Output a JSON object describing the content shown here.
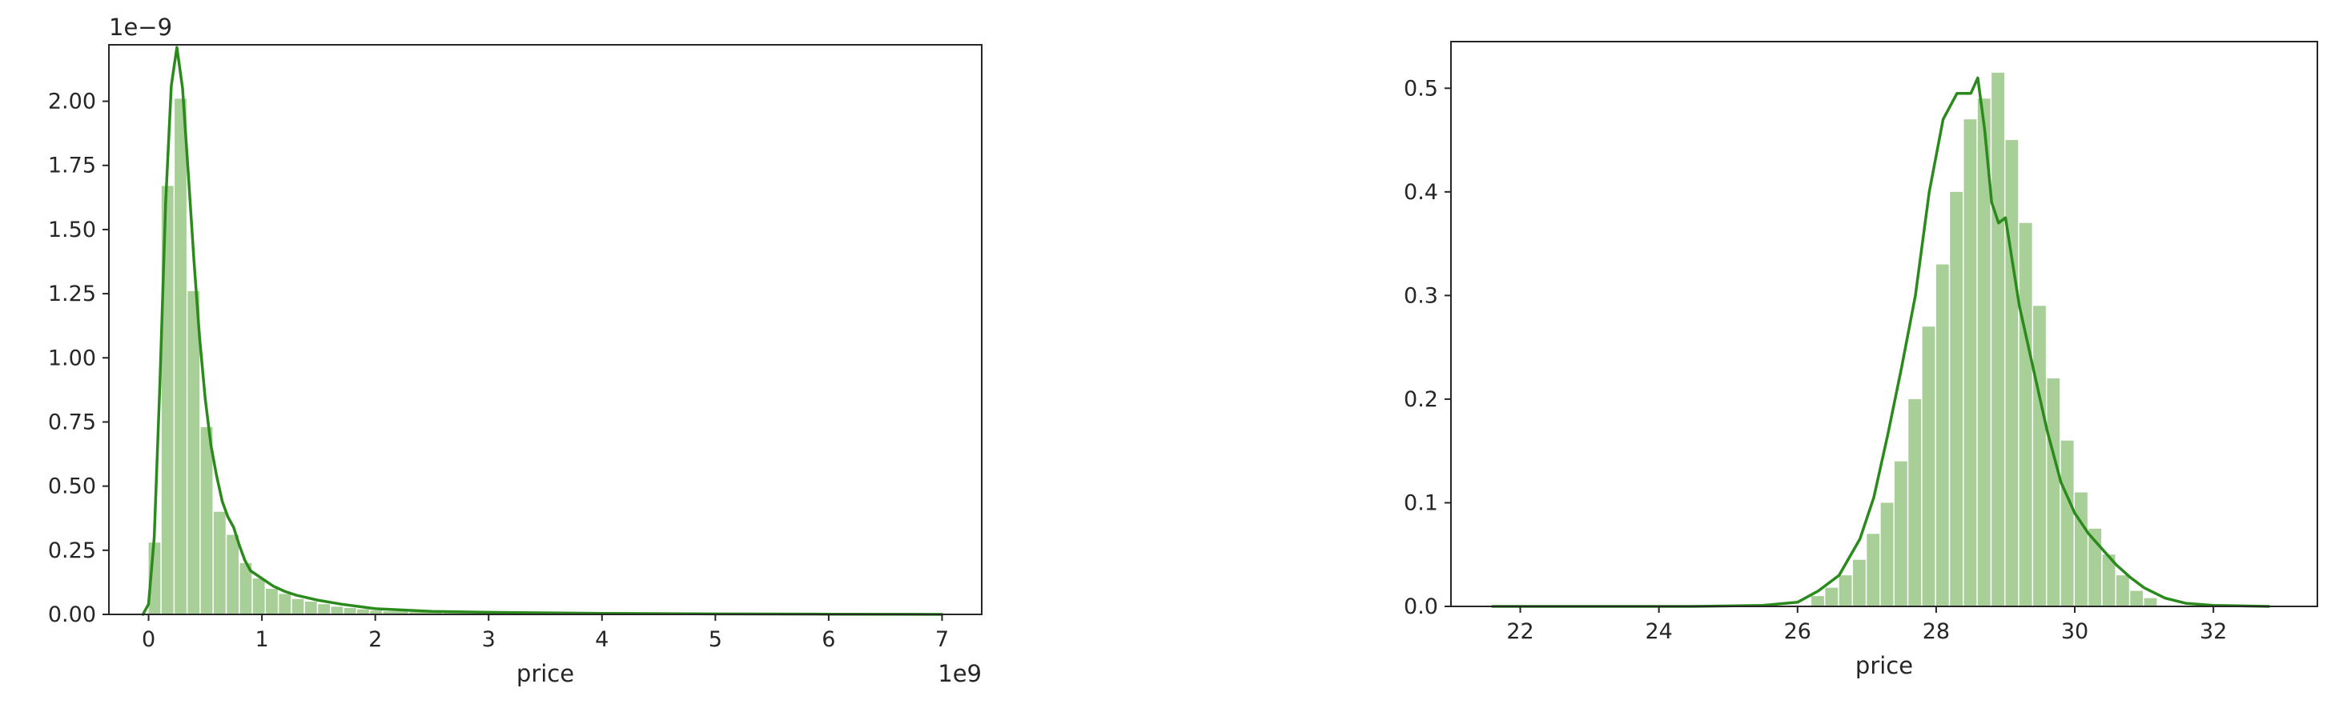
{
  "chart_data": [
    {
      "type": "bar",
      "subtype": "histogram-with-kde",
      "xlabel": "price",
      "ylabel": "",
      "x_offset_text": "1e9",
      "y_offset_text": "1e−9",
      "xlim": [
        -0.35,
        7.35
      ],
      "ylim": [
        0,
        2.22
      ],
      "xticks": [
        0,
        1,
        2,
        3,
        4,
        5,
        6,
        7
      ],
      "xtick_labels": [
        "0",
        "1",
        "2",
        "3",
        "4",
        "5",
        "6",
        "7"
      ],
      "yticks": [
        0,
        0.25,
        0.5,
        0.75,
        1.0,
        1.25,
        1.5,
        1.75,
        2.0
      ],
      "ytick_labels": [
        "0.00",
        "0.25",
        "0.50",
        "0.75",
        "1.00",
        "1.25",
        "1.50",
        "1.75",
        "2.00"
      ],
      "grid": false,
      "bar_color": "#a9cf98",
      "line_color": "#2a8a1c",
      "bin_edges": [
        0.0,
        0.115,
        0.23,
        0.345,
        0.46,
        0.575,
        0.69,
        0.805,
        0.92,
        1.035,
        1.15,
        1.265,
        1.38,
        1.495,
        1.61,
        1.725,
        1.84,
        1.955,
        2.07,
        2.3,
        2.6,
        3.0,
        3.5,
        4.0,
        5.0,
        6.0,
        7.0
      ],
      "values": [
        0.28,
        1.67,
        2.01,
        1.26,
        0.73,
        0.4,
        0.31,
        0.2,
        0.14,
        0.1,
        0.08,
        0.06,
        0.05,
        0.04,
        0.03,
        0.025,
        0.02,
        0.015,
        0.012,
        0.009,
        0.007,
        0.005,
        0.004,
        0.003,
        0.002,
        0.001
      ],
      "kde_x": [
        -0.05,
        0.0,
        0.05,
        0.1,
        0.15,
        0.2,
        0.25,
        0.3,
        0.35,
        0.4,
        0.45,
        0.5,
        0.55,
        0.6,
        0.65,
        0.7,
        0.75,
        0.8,
        0.85,
        0.9,
        1.0,
        1.1,
        1.2,
        1.3,
        1.5,
        1.7,
        2.0,
        2.5,
        3.0,
        4.0,
        5.0,
        6.0,
        7.0
      ],
      "kde_y": [
        0.0,
        0.04,
        0.3,
        0.9,
        1.6,
        2.06,
        2.21,
        2.05,
        1.72,
        1.38,
        1.08,
        0.84,
        0.66,
        0.54,
        0.44,
        0.38,
        0.34,
        0.27,
        0.21,
        0.17,
        0.14,
        0.11,
        0.09,
        0.075,
        0.055,
        0.04,
        0.022,
        0.012,
        0.008,
        0.004,
        0.002,
        0.001,
        0.0
      ]
    },
    {
      "type": "bar",
      "subtype": "histogram-with-kde",
      "xlabel": "price",
      "ylabel": "",
      "xlim": [
        21.0,
        33.5
      ],
      "ylim": [
        0,
        0.545
      ],
      "xticks": [
        22,
        24,
        26,
        28,
        30,
        32
      ],
      "xtick_labels": [
        "22",
        "24",
        "26",
        "28",
        "30",
        "32"
      ],
      "yticks": [
        0.0,
        0.1,
        0.2,
        0.3,
        0.4,
        0.5
      ],
      "ytick_labels": [
        "0.0",
        "0.1",
        "0.2",
        "0.3",
        "0.4",
        "0.5"
      ],
      "grid": false,
      "bar_color": "#a9cf98",
      "line_color": "#2a8a1c",
      "bin_start": 26.2,
      "bin_width": 0.2,
      "values": [
        0.01,
        0.018,
        0.03,
        0.045,
        0.07,
        0.1,
        0.14,
        0.2,
        0.27,
        0.33,
        0.4,
        0.47,
        0.49,
        0.515,
        0.45,
        0.37,
        0.29,
        0.22,
        0.16,
        0.11,
        0.075,
        0.05,
        0.03,
        0.015,
        0.008
      ],
      "kde_x": [
        21.6,
        22.5,
        23.5,
        24.5,
        25.5,
        26.0,
        26.3,
        26.6,
        26.9,
        27.1,
        27.3,
        27.5,
        27.7,
        27.9,
        28.1,
        28.3,
        28.5,
        28.6,
        28.7,
        28.8,
        28.9,
        29.0,
        29.2,
        29.4,
        29.6,
        29.8,
        30.0,
        30.2,
        30.4,
        30.6,
        30.8,
        31.0,
        31.3,
        31.6,
        32.0,
        32.8
      ],
      "kde_y": [
        0.0,
        0.0,
        0.0,
        0.0,
        0.001,
        0.004,
        0.015,
        0.03,
        0.065,
        0.105,
        0.165,
        0.23,
        0.3,
        0.4,
        0.47,
        0.495,
        0.495,
        0.51,
        0.46,
        0.39,
        0.37,
        0.375,
        0.29,
        0.23,
        0.17,
        0.12,
        0.09,
        0.07,
        0.055,
        0.04,
        0.028,
        0.018,
        0.008,
        0.003,
        0.001,
        0.0
      ]
    }
  ]
}
